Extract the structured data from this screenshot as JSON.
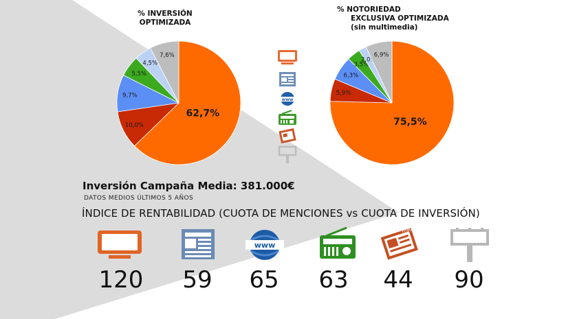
{
  "colors": {
    "tv": "#ff6a00",
    "press": "#c82a06",
    "internet": "#5b8ff5",
    "radio": "#3caa1e",
    "magazine": "#bcd2f5",
    "outdoor": "#bdbdbd",
    "background_triangle": "#dcdcdc"
  },
  "media": [
    {
      "key": "tv",
      "icon": "television-icon"
    },
    {
      "key": "press",
      "icon": "newspaper-icon"
    },
    {
      "key": "internet",
      "icon": "www-globe-icon"
    },
    {
      "key": "radio",
      "icon": "radio-icon"
    },
    {
      "key": "magazine",
      "icon": "magazine-icon"
    },
    {
      "key": "outdoor",
      "icon": "billboard-icon"
    }
  ],
  "chart_data": [
    {
      "type": "pie",
      "title_line1": "% INVERSIÓN",
      "title_line2": "OPTIMIZADA",
      "slices": [
        {
          "media": "tv",
          "value": 62.7,
          "label": "62,7%"
        },
        {
          "media": "press",
          "value": 10.0,
          "label": "10,0%"
        },
        {
          "media": "internet",
          "value": 9.7,
          "label": "9,7%"
        },
        {
          "media": "radio",
          "value": 5.5,
          "label": "5,5%"
        },
        {
          "media": "magazine",
          "value": 4.5,
          "label": "4,5%"
        },
        {
          "media": "outdoor",
          "value": 7.6,
          "label": "7,6%"
        }
      ]
    },
    {
      "type": "pie",
      "title_line1": "% NOTORIEDAD",
      "title_line2": "EXCLUSIVA OPTIMIZADA",
      "title_line3": "(sin multimedia)",
      "slices": [
        {
          "media": "tv",
          "value": 75.5,
          "label": "75,5%"
        },
        {
          "media": "press",
          "value": 5.9,
          "label": "5,9%"
        },
        {
          "media": "internet",
          "value": 6.3,
          "label": "6,3%"
        },
        {
          "media": "radio",
          "value": 3.5,
          "label": "3,5%"
        },
        {
          "media": "magazine",
          "value": 2.0,
          "label": "2,0%"
        },
        {
          "media": "outdoor",
          "value": 6.9,
          "label": "6,9%"
        }
      ]
    }
  ],
  "campaign": {
    "headline": "Inversión Campaña Media: 381.000€",
    "subhead": "DATOS MEDIOS ÚLTIMOS 5 AÑOS",
    "index_title": "ÍNDICE DE RENTABILIDAD (CUOTA DE MENCIONES vs CUOTA DE INVERSIÓN)"
  },
  "rentabilidad": [
    {
      "media": "tv",
      "icon": "television-icon",
      "value": "120"
    },
    {
      "media": "press",
      "icon": "newspaper-icon",
      "value": "59"
    },
    {
      "media": "internet",
      "icon": "www-globe-icon",
      "value": "65"
    },
    {
      "media": "radio",
      "icon": "radio-icon",
      "value": "63"
    },
    {
      "media": "magazine",
      "icon": "magazine-icon",
      "value": "44"
    },
    {
      "media": "outdoor",
      "icon": "billboard-icon",
      "value": "90"
    }
  ]
}
